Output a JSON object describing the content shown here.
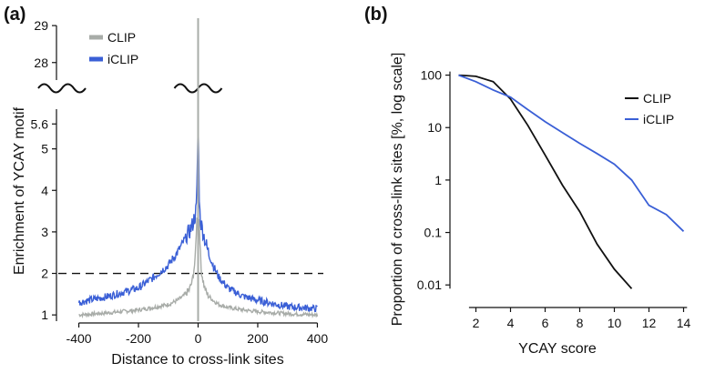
{
  "chart_data": [
    {
      "panel": "(a)",
      "type": "line",
      "title": "",
      "xlabel": "Distance to cross-link sites",
      "ylabel": "Enrichment of YCAY motif",
      "xlim": [
        -420,
        420
      ],
      "xticks": [
        -400,
        -200,
        0,
        200,
        400
      ],
      "ylim_lower": [
        0.85,
        6.0
      ],
      "yticks_lower": [
        "1",
        "2",
        "3",
        "4",
        "5",
        "5.6"
      ],
      "ylim_upper": [
        27.6,
        29.2
      ],
      "yticks_upper": [
        "28",
        "29"
      ],
      "axis_break": true,
      "legend": [
        "CLIP",
        "iCLIP"
      ],
      "legend_position": "top-left",
      "reference_line": {
        "y": 2,
        "style": "dashed"
      },
      "series": [
        {
          "name": "CLIP",
          "color": "#a8aca8",
          "x": [
            -400,
            -300,
            -200,
            -150,
            -100,
            -70,
            -50,
            -30,
            -20,
            -10,
            -5,
            0,
            5,
            10,
            20,
            30,
            50,
            70,
            100,
            150,
            200,
            300,
            400
          ],
          "y": [
            1.0,
            1.05,
            1.12,
            1.18,
            1.25,
            1.35,
            1.45,
            1.6,
            1.8,
            2.3,
            3.2,
            29.0,
            3.0,
            2.1,
            1.7,
            1.5,
            1.35,
            1.25,
            1.18,
            1.12,
            1.08,
            1.03,
            1.0
          ]
        },
        {
          "name": "iCLIP",
          "color": "#3a5fd6",
          "x": [
            -400,
            -300,
            -200,
            -150,
            -100,
            -70,
            -50,
            -30,
            -20,
            -10,
            -5,
            0,
            5,
            10,
            20,
            30,
            50,
            70,
            100,
            150,
            200,
            300,
            400
          ],
          "y": [
            1.3,
            1.45,
            1.65,
            1.9,
            2.2,
            2.5,
            2.75,
            3.0,
            3.15,
            3.4,
            3.6,
            5.6,
            3.5,
            3.2,
            2.9,
            2.6,
            2.2,
            1.9,
            1.65,
            1.45,
            1.35,
            1.2,
            1.15
          ]
        }
      ]
    },
    {
      "panel": "(b)",
      "type": "line",
      "title": "",
      "xlabel": "YCAY score",
      "ylabel": "Proportion of cross-link sites [%, log scale]",
      "xlim": [
        0.5,
        14.5
      ],
      "xticks": [
        2,
        4,
        6,
        8,
        10,
        12,
        14
      ],
      "yscale": "log",
      "ylim": [
        0.006,
        130
      ],
      "yticks": [
        100,
        10,
        1,
        0.1,
        0.01
      ],
      "ytick_labels": [
        "100",
        "10",
        "1",
        "0.1",
        "0.01"
      ],
      "legend": [
        "CLIP",
        "iCLIP"
      ],
      "legend_position": "top-right",
      "series": [
        {
          "name": "CLIP",
          "color": "#111111",
          "x": [
            1,
            2,
            3,
            4,
            5,
            6,
            7,
            8,
            9,
            10,
            11
          ],
          "y": [
            100,
            95,
            75,
            35,
            11,
            3,
            0.8,
            0.25,
            0.06,
            0.02,
            0.0085
          ]
        },
        {
          "name": "iCLIP",
          "color": "#3a5fd6",
          "x": [
            1,
            2,
            3,
            4,
            5,
            6,
            7,
            8,
            9,
            10,
            11,
            12,
            13,
            14
          ],
          "y": [
            100,
            75,
            52,
            38,
            22,
            13,
            8,
            5,
            3.2,
            2.0,
            1.0,
            0.33,
            0.22,
            0.105
          ]
        }
      ]
    }
  ]
}
